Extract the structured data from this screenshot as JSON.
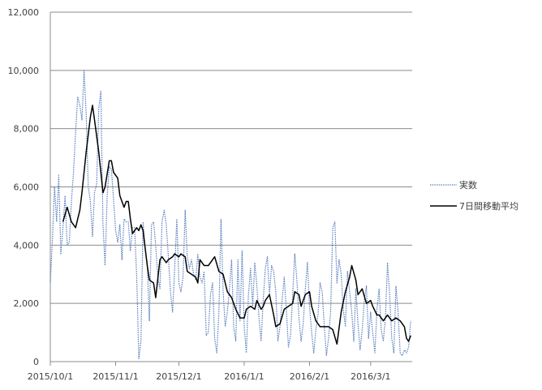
{
  "chart_data": {
    "type": "line",
    "title": "",
    "xlabel": "",
    "ylabel": "",
    "ylim": [
      0,
      12000
    ],
    "yticks": [
      "0",
      "2,000",
      "4,000",
      "6,000",
      "8,000",
      "10,000",
      "12,000"
    ],
    "xlim": [
      "2015-10-01",
      "2016-03-20"
    ],
    "xticks": [
      {
        "date": "2015-10-01",
        "label": "2015/10/1"
      },
      {
        "date": "2015-11-01",
        "label": "2015/11/1"
      },
      {
        "date": "2015-12-01",
        "label": "2015/12/1"
      },
      {
        "date": "2016-01-01",
        "label": "2016/1/1"
      },
      {
        "date": "2016-02-01",
        "label": "2016/2/1"
      },
      {
        "date": "2016-03-01",
        "label": "2016/3/1"
      }
    ],
    "grid": "horizontal",
    "legend_position": "right",
    "series": [
      {
        "name": "実数",
        "style": "dotted",
        "color": "#5b7fbf",
        "points": [
          [
            "2015-10-01",
            2700
          ],
          [
            "2015-10-02",
            4200
          ],
          [
            "2015-10-03",
            6000
          ],
          [
            "2015-10-04",
            4800
          ],
          [
            "2015-10-05",
            6400
          ],
          [
            "2015-10-06",
            3700
          ],
          [
            "2015-10-07",
            4600
          ],
          [
            "2015-10-08",
            5700
          ],
          [
            "2015-10-09",
            4000
          ],
          [
            "2015-10-10",
            4100
          ],
          [
            "2015-10-11",
            5500
          ],
          [
            "2015-10-12",
            6500
          ],
          [
            "2015-10-13",
            7900
          ],
          [
            "2015-10-14",
            9100
          ],
          [
            "2015-10-15",
            8800
          ],
          [
            "2015-10-16",
            8300
          ],
          [
            "2015-10-17",
            10000
          ],
          [
            "2015-10-18",
            8500
          ],
          [
            "2015-10-19",
            6000
          ],
          [
            "2015-10-20",
            5500
          ],
          [
            "2015-10-21",
            4300
          ],
          [
            "2015-10-22",
            5800
          ],
          [
            "2015-10-23",
            6100
          ],
          [
            "2015-10-24",
            8700
          ],
          [
            "2015-10-25",
            9300
          ],
          [
            "2015-10-26",
            4700
          ],
          [
            "2015-10-27",
            3300
          ],
          [
            "2015-10-28",
            5700
          ],
          [
            "2015-10-29",
            6700
          ],
          [
            "2015-10-30",
            6600
          ],
          [
            "2015-10-31",
            5600
          ],
          [
            "2015-11-01",
            4500
          ],
          [
            "2015-11-02",
            4100
          ],
          [
            "2015-11-03",
            4700
          ],
          [
            "2015-11-04",
            3500
          ],
          [
            "2015-11-05",
            4900
          ],
          [
            "2015-11-06",
            4800
          ],
          [
            "2015-11-07",
            4800
          ],
          [
            "2015-11-08",
            3800
          ],
          [
            "2015-11-09",
            4600
          ],
          [
            "2015-11-10",
            4600
          ],
          [
            "2015-11-11",
            2900
          ],
          [
            "2015-11-12",
            100
          ],
          [
            "2015-11-13",
            700
          ],
          [
            "2015-11-14",
            4800
          ],
          [
            "2015-11-15",
            3900
          ],
          [
            "2015-11-16",
            3300
          ],
          [
            "2015-11-17",
            1400
          ],
          [
            "2015-11-18",
            4700
          ],
          [
            "2015-11-19",
            4800
          ],
          [
            "2015-11-20",
            4000
          ],
          [
            "2015-11-21",
            2900
          ],
          [
            "2015-11-22",
            2500
          ],
          [
            "2015-11-23",
            4800
          ],
          [
            "2015-11-24",
            5200
          ],
          [
            "2015-11-25",
            4700
          ],
          [
            "2015-11-26",
            3600
          ],
          [
            "2015-11-27",
            2400
          ],
          [
            "2015-11-28",
            1700
          ],
          [
            "2015-11-29",
            3200
          ],
          [
            "2015-11-30",
            4900
          ],
          [
            "2015-12-01",
            2700
          ],
          [
            "2015-12-02",
            2400
          ],
          [
            "2015-12-03",
            2900
          ],
          [
            "2015-12-04",
            5200
          ],
          [
            "2015-12-05",
            3600
          ],
          [
            "2015-12-06",
            3200
          ],
          [
            "2015-12-07",
            3500
          ],
          [
            "2015-12-08",
            3000
          ],
          [
            "2015-12-09",
            2800
          ],
          [
            "2015-12-10",
            3700
          ],
          [
            "2015-12-11",
            2900
          ],
          [
            "2015-12-12",
            2700
          ],
          [
            "2015-12-13",
            3100
          ],
          [
            "2015-12-14",
            900
          ],
          [
            "2015-12-15",
            1000
          ],
          [
            "2015-12-16",
            2300
          ],
          [
            "2015-12-17",
            2700
          ],
          [
            "2015-12-18",
            800
          ],
          [
            "2015-12-19",
            300
          ],
          [
            "2015-12-20",
            1700
          ],
          [
            "2015-12-21",
            4900
          ],
          [
            "2015-12-22",
            2400
          ],
          [
            "2015-12-23",
            1200
          ],
          [
            "2015-12-24",
            1700
          ],
          [
            "2015-12-25",
            2500
          ],
          [
            "2015-12-26",
            3500
          ],
          [
            "2015-12-27",
            1200
          ],
          [
            "2015-12-28",
            700
          ],
          [
            "2015-12-29",
            3500
          ],
          [
            "2015-12-30",
            1400
          ],
          [
            "2015-12-31",
            3800
          ],
          [
            "2016-01-01",
            1200
          ],
          [
            "2016-01-02",
            300
          ],
          [
            "2016-01-03",
            2300
          ],
          [
            "2016-01-04",
            3200
          ],
          [
            "2016-01-05",
            1900
          ],
          [
            "2016-01-06",
            3400
          ],
          [
            "2016-01-07",
            2600
          ],
          [
            "2016-01-08",
            1500
          ],
          [
            "2016-01-09",
            700
          ],
          [
            "2016-01-10",
            2100
          ],
          [
            "2016-01-11",
            3200
          ],
          [
            "2016-01-12",
            3600
          ],
          [
            "2016-01-13",
            2300
          ],
          [
            "2016-01-14",
            3300
          ],
          [
            "2016-01-15",
            3100
          ],
          [
            "2016-01-16",
            2400
          ],
          [
            "2016-01-17",
            700
          ],
          [
            "2016-01-18",
            1200
          ],
          [
            "2016-01-19",
            2100
          ],
          [
            "2016-01-20",
            2900
          ],
          [
            "2016-01-21",
            1800
          ],
          [
            "2016-01-22",
            500
          ],
          [
            "2016-01-23",
            900
          ],
          [
            "2016-01-24",
            2300
          ],
          [
            "2016-01-25",
            3700
          ],
          [
            "2016-01-26",
            2800
          ],
          [
            "2016-01-27",
            1500
          ],
          [
            "2016-01-28",
            700
          ],
          [
            "2016-01-29",
            1300
          ],
          [
            "2016-01-30",
            2500
          ],
          [
            "2016-01-31",
            3400
          ],
          [
            "2016-02-01",
            1900
          ],
          [
            "2016-02-02",
            1000
          ],
          [
            "2016-02-03",
            300
          ],
          [
            "2016-02-04",
            1100
          ],
          [
            "2016-02-05",
            1600
          ],
          [
            "2016-02-06",
            2700
          ],
          [
            "2016-02-07",
            2400
          ],
          [
            "2016-02-08",
            1200
          ],
          [
            "2016-02-09",
            200
          ],
          [
            "2016-02-10",
            800
          ],
          [
            "2016-02-11",
            1700
          ],
          [
            "2016-02-12",
            4600
          ],
          [
            "2016-02-13",
            4800
          ],
          [
            "2016-02-14",
            2700
          ],
          [
            "2016-02-15",
            3500
          ],
          [
            "2016-02-16",
            3000
          ],
          [
            "2016-02-17",
            1800
          ],
          [
            "2016-02-18",
            1200
          ],
          [
            "2016-02-19",
            3100
          ],
          [
            "2016-02-20",
            2400
          ],
          [
            "2016-02-21",
            1700
          ],
          [
            "2016-02-22",
            700
          ],
          [
            "2016-02-23",
            2500
          ],
          [
            "2016-02-24",
            1300
          ],
          [
            "2016-02-25",
            400
          ],
          [
            "2016-02-26",
            1100
          ],
          [
            "2016-02-27",
            2100
          ],
          [
            "2016-02-28",
            2600
          ],
          [
            "2016-02-29",
            800
          ],
          [
            "2016-03-01",
            1700
          ],
          [
            "2016-03-02",
            1000
          ],
          [
            "2016-03-03",
            300
          ],
          [
            "2016-03-04",
            1800
          ],
          [
            "2016-03-05",
            2500
          ],
          [
            "2016-03-06",
            1100
          ],
          [
            "2016-03-07",
            700
          ],
          [
            "2016-03-08",
            1500
          ],
          [
            "2016-03-09",
            3400
          ],
          [
            "2016-03-10",
            2300
          ],
          [
            "2016-03-11",
            800
          ],
          [
            "2016-03-12",
            300
          ],
          [
            "2016-03-13",
            2600
          ],
          [
            "2016-03-14",
            1700
          ],
          [
            "2016-03-15",
            300
          ],
          [
            "2016-03-16",
            200
          ],
          [
            "2016-03-17",
            400
          ],
          [
            "2016-03-18",
            300
          ],
          [
            "2016-03-19",
            500
          ],
          [
            "2016-03-20",
            1400
          ]
        ]
      },
      {
        "name": "7日間移動平均",
        "style": "solid",
        "color": "#000000",
        "points": [
          [
            "2015-10-07",
            4800
          ],
          [
            "2015-10-09",
            5300
          ],
          [
            "2015-10-11",
            4800
          ],
          [
            "2015-10-13",
            4600
          ],
          [
            "2015-10-15",
            5200
          ],
          [
            "2015-10-16",
            5800
          ],
          [
            "2015-10-18",
            7200
          ],
          [
            "2015-10-19",
            7800
          ],
          [
            "2015-10-20",
            8400
          ],
          [
            "2015-10-21",
            8800
          ],
          [
            "2015-10-22",
            8300
          ],
          [
            "2015-10-24",
            7200
          ],
          [
            "2015-10-26",
            5800
          ],
          [
            "2015-10-27",
            6000
          ],
          [
            "2015-10-29",
            6900
          ],
          [
            "2015-10-30",
            6900
          ],
          [
            "2015-10-31",
            6500
          ],
          [
            "2015-11-02",
            6300
          ],
          [
            "2015-11-03",
            5700
          ],
          [
            "2015-11-04",
            5500
          ],
          [
            "2015-11-05",
            5300
          ],
          [
            "2015-11-06",
            5500
          ],
          [
            "2015-11-07",
            5500
          ],
          [
            "2015-11-08",
            4900
          ],
          [
            "2015-11-09",
            4400
          ],
          [
            "2015-11-11",
            4600
          ],
          [
            "2015-11-12",
            4500
          ],
          [
            "2015-11-13",
            4700
          ],
          [
            "2015-11-14",
            4500
          ],
          [
            "2015-11-16",
            3300
          ],
          [
            "2015-11-17",
            2800
          ],
          [
            "2015-11-19",
            2700
          ],
          [
            "2015-11-20",
            2200
          ],
          [
            "2015-11-22",
            3500
          ],
          [
            "2015-11-23",
            3600
          ],
          [
            "2015-11-25",
            3400
          ],
          [
            "2015-11-26",
            3500
          ],
          [
            "2015-11-28",
            3600
          ],
          [
            "2015-11-29",
            3700
          ],
          [
            "2015-12-01",
            3600
          ],
          [
            "2015-12-02",
            3700
          ],
          [
            "2015-12-04",
            3600
          ],
          [
            "2015-12-05",
            3100
          ],
          [
            "2015-12-07",
            3000
          ],
          [
            "2015-12-09",
            2900
          ],
          [
            "2015-12-10",
            2700
          ],
          [
            "2015-12-11",
            3500
          ],
          [
            "2015-12-13",
            3300
          ],
          [
            "2015-12-15",
            3300
          ],
          [
            "2015-12-17",
            3500
          ],
          [
            "2015-12-18",
            3600
          ],
          [
            "2015-12-20",
            3100
          ],
          [
            "2015-12-22",
            3000
          ],
          [
            "2015-12-24",
            2400
          ],
          [
            "2015-12-26",
            2200
          ],
          [
            "2015-12-28",
            1800
          ],
          [
            "2015-12-30",
            1500
          ],
          [
            "2016-01-01",
            1500
          ],
          [
            "2016-01-02",
            1800
          ],
          [
            "2016-01-04",
            1900
          ],
          [
            "2016-01-06",
            1800
          ],
          [
            "2016-01-07",
            2100
          ],
          [
            "2016-01-09",
            1800
          ],
          [
            "2016-01-10",
            1900
          ],
          [
            "2016-01-11",
            2100
          ],
          [
            "2016-01-13",
            2300
          ],
          [
            "2016-01-15",
            1600
          ],
          [
            "2016-01-16",
            1200
          ],
          [
            "2016-01-18",
            1300
          ],
          [
            "2016-01-20",
            1800
          ],
          [
            "2016-01-22",
            1900
          ],
          [
            "2016-01-24",
            2000
          ],
          [
            "2016-01-25",
            2400
          ],
          [
            "2016-01-27",
            2300
          ],
          [
            "2016-01-28",
            1900
          ],
          [
            "2016-01-30",
            2300
          ],
          [
            "2016-02-01",
            2400
          ],
          [
            "2016-02-02",
            1900
          ],
          [
            "2016-02-04",
            1400
          ],
          [
            "2016-02-06",
            1200
          ],
          [
            "2016-02-08",
            1200
          ],
          [
            "2016-02-10",
            1200
          ],
          [
            "2016-02-12",
            1100
          ],
          [
            "2016-02-14",
            600
          ],
          [
            "2016-02-16",
            1700
          ],
          [
            "2016-02-18",
            2400
          ],
          [
            "2016-02-20",
            2900
          ],
          [
            "2016-02-21",
            3300
          ],
          [
            "2016-02-23",
            2800
          ],
          [
            "2016-02-24",
            2300
          ],
          [
            "2016-02-26",
            2500
          ],
          [
            "2016-02-28",
            2000
          ],
          [
            "2016-03-01",
            2100
          ],
          [
            "2016-03-02",
            1900
          ],
          [
            "2016-03-04",
            1600
          ],
          [
            "2016-03-05",
            1600
          ],
          [
            "2016-03-07",
            1400
          ],
          [
            "2016-03-09",
            1600
          ],
          [
            "2016-03-11",
            1400
          ],
          [
            "2016-03-13",
            1500
          ],
          [
            "2016-03-15",
            1400
          ],
          [
            "2016-03-17",
            1200
          ],
          [
            "2016-03-18",
            800
          ],
          [
            "2016-03-19",
            700
          ],
          [
            "2016-03-20",
            900
          ]
        ]
      }
    ]
  }
}
